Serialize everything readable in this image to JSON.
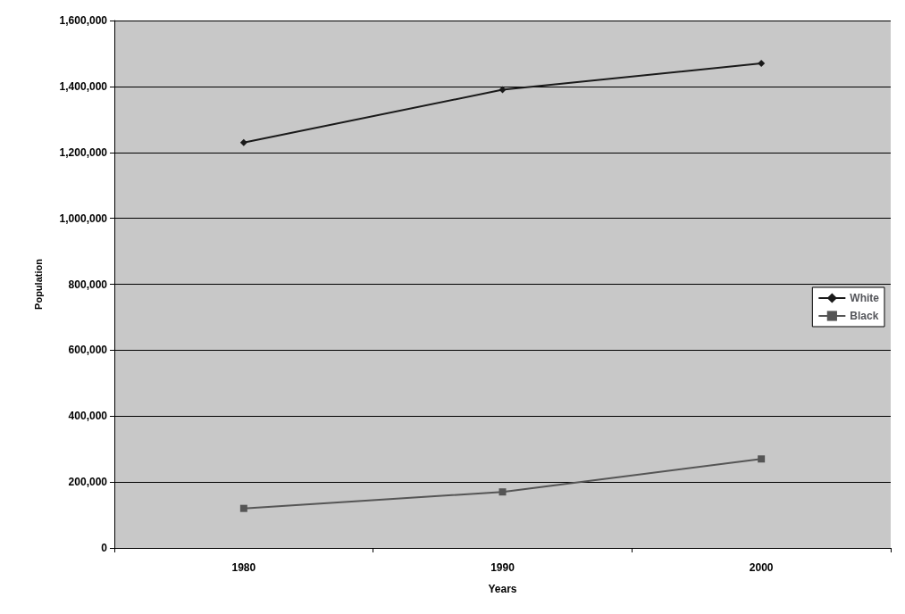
{
  "chart_data": {
    "type": "line",
    "xlabel": "Years",
    "ylabel": "Population",
    "categories": [
      "1980",
      "1990",
      "2000"
    ],
    "series": [
      {
        "name": "White",
        "color": "#1a1a1a",
        "marker": "diamond",
        "values": [
          1230000,
          1390000,
          1470000
        ]
      },
      {
        "name": "Black",
        "color": "#555555",
        "marker": "square",
        "values": [
          120000,
          170000,
          270000
        ]
      }
    ],
    "ylim": [
      0,
      1600000
    ],
    "yticks": [
      0,
      {
        "value": 200000,
        "label": "200,000"
      },
      {
        "value": 400000,
        "label": "400,000"
      },
      {
        "value": 600000,
        "label": "600,000"
      },
      {
        "value": 800000,
        "label": "800,000"
      },
      {
        "value": 1000000,
        "label": "1,000,000"
      },
      {
        "value": 1200000,
        "label": "1,200,000"
      },
      {
        "value": 1400000,
        "label": "1,400,000"
      },
      {
        "value": 1600000,
        "label": "1,600,000"
      }
    ],
    "grid": "y",
    "legend": "right"
  }
}
